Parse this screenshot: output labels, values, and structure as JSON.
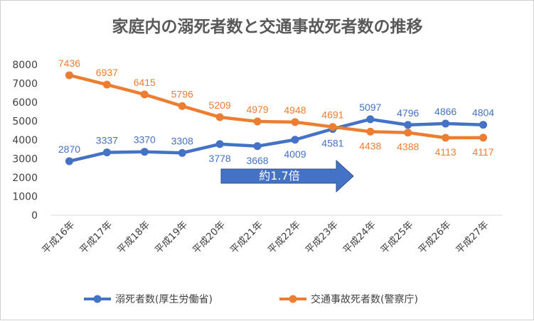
{
  "chart_data": {
    "type": "line",
    "title": "家庭内の溺死者数と交通事故死者数の推移",
    "categories": [
      "平成16年",
      "平成17年",
      "平成18年",
      "平成19年",
      "平成20年",
      "平成21年",
      "平成22年",
      "平成23年",
      "平成24年",
      "平成25年",
      "平成26年",
      "平成27年"
    ],
    "ylim": [
      0,
      8000
    ],
    "yticks": [
      0,
      1000,
      2000,
      3000,
      4000,
      5000,
      6000,
      7000,
      8000
    ],
    "grid": false,
    "legend_position": "bottom",
    "series": [
      {
        "name": "溺死者数(厚生労働省)",
        "color": "#4472c4",
        "values": [
          2870,
          3337,
          3370,
          3308,
          3778,
          3668,
          4009,
          4581,
          5097,
          4796,
          4866,
          4804
        ],
        "label_position": [
          "above",
          "above",
          "above",
          "above",
          "below",
          "below",
          "below",
          "below",
          "above",
          "above",
          "above",
          "above"
        ]
      },
      {
        "name": "交通事故死者数(警察庁)",
        "color": "#ed7d31",
        "values": [
          7436,
          6937,
          6415,
          5796,
          5209,
          4979,
          4948,
          4691,
          4438,
          4388,
          4113,
          4117
        ],
        "label_position": [
          "above",
          "above",
          "above",
          "above",
          "above",
          "above",
          "above",
          "above",
          "below",
          "below",
          "below",
          "below"
        ]
      }
    ],
    "annotation": {
      "text": "約1.7倍",
      "shape": "right-arrow",
      "fill": "#4472c4"
    }
  }
}
